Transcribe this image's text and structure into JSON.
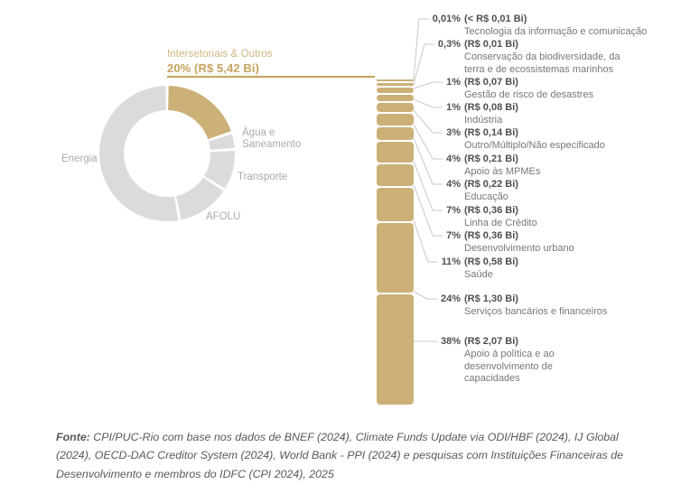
{
  "figure": {
    "callout": {
      "title": "Intersetoriais & Outros",
      "value": "20% (R$ 5,42 Bi)"
    },
    "donut": {
      "segments": [
        {
          "name": "Intersetoriais & Outros",
          "share": 20,
          "highlighted": true
        },
        {
          "name": "Água e Saneamento",
          "share": 4,
          "highlighted": false
        },
        {
          "name": "Transporte",
          "share": 10,
          "highlighted": false
        },
        {
          "name": "AFOLU",
          "share": 13,
          "highlighted": false
        },
        {
          "name": "Energia",
          "share": 53,
          "highlighted": false
        }
      ]
    },
    "breakdown": [
      {
        "pct": "0,01%",
        "value": "(< R$ 0,01 Bi)",
        "label": "Tecnologia da informação e comunicação",
        "share": 0.01
      },
      {
        "pct": "0,3%",
        "value": "(R$ 0,01 Bi)",
        "label": "Conservação da biodiversidade, da terra e de ecossistemas marinhos",
        "share": 0.3
      },
      {
        "pct": "1%",
        "value": "(R$ 0,07 Bi)",
        "label": "Gestão de risco de desastres",
        "share": 1
      },
      {
        "pct": "1%",
        "value": "(R$ 0,08 Bi)",
        "label": "Indústria",
        "share": 1
      },
      {
        "pct": "3%",
        "value": "(R$ 0,14 Bi)",
        "label": "Outro/Múltiplo/Não especificado",
        "share": 3
      },
      {
        "pct": "4%",
        "value": "(R$ 0,21 Bi)",
        "label": "Apoio às MPMEs",
        "share": 4
      },
      {
        "pct": "4%",
        "value": "(R$ 0,22 Bi)",
        "label": "Educação",
        "share": 4
      },
      {
        "pct": "7%",
        "value": "(R$ 0,36 Bi)",
        "label": "Linha de Crédito",
        "share": 7
      },
      {
        "pct": "7%",
        "value": "(R$ 0,36 Bi)",
        "label": "Desenvolvimento urbano",
        "share": 7
      },
      {
        "pct": "11%",
        "value": "(R$ 0,58 Bi)",
        "label": "Saúde",
        "share": 11
      },
      {
        "pct": "24%",
        "value": "(R$ 1,30 Bi)",
        "label": "Serviços bancários e financeiros",
        "share": 24
      },
      {
        "pct": "38%",
        "value": "(R$ 2,07 Bi)",
        "label": "Apoio à política e ao desenvolvimento de capacidades",
        "share": 38
      }
    ],
    "source": {
      "prefix": "Fonte:",
      "text": " CPI/PUC-Rio com base nos dados de BNEF (2024), Climate Funds Update via ODI/HBF (2024), IJ Global (2024), OECD-DAC Creditor System (2024), World Bank - PPI (2024) e pesquisas com Instituições Financeiras de Desenvolvimento e membros do IDFC (CPI 2024), 2025"
    },
    "colors": {
      "gold": "#CBB077",
      "gold_text": "#C5A45C",
      "gold_text_light": "#CFB67F",
      "gray_segment": "#DBDBDA",
      "text_dark": "#4E4F51",
      "text_gray": "#76777A",
      "label_gray": "#ACAAAB",
      "connector": "#C8C8C8"
    }
  },
  "chart_data": [
    {
      "type": "pie",
      "title": "",
      "slices": [
        {
          "label": "Intersetoriais & Outros",
          "value_pct": 20,
          "value": "R$ 5,42 Bi",
          "highlighted": true
        },
        {
          "label": "Água e Saneamento",
          "value_pct": 4
        },
        {
          "label": "Transporte",
          "value_pct": 10
        },
        {
          "label": "AFOLU",
          "value_pct": 13
        },
        {
          "label": "Energia",
          "value_pct": 53
        }
      ],
      "legend_position": "around",
      "note": "donut; gray slice percentages estimated from arc angles (unlabeled in figure)"
    },
    {
      "type": "bar",
      "title": "",
      "categories": [
        "Tecnologia da informação e comunicação",
        "Conservação da biodiversidade, da terra e de ecossistemas marinhos",
        "Gestão de risco de desastres",
        "Indústria",
        "Outro/Múltiplo/Não especificado",
        "Apoio às MPMEs",
        "Educação",
        "Linha de Crédito",
        "Desenvolvimento urbano",
        "Saúde",
        "Serviços bancários e financeiros",
        "Apoio à política e ao desenvolvimento de capacidades"
      ],
      "values_pct": [
        0.01,
        0.3,
        1,
        1,
        3,
        4,
        4,
        7,
        7,
        11,
        24,
        38
      ],
      "values_brl_bi": [
        0.01,
        0.01,
        0.07,
        0.08,
        0.14,
        0.21,
        0.22,
        0.36,
        0.36,
        0.58,
        1.3,
        2.07
      ],
      "value_labels": [
        "(< R$ 0,01 Bi)",
        "(R$ 0,01 Bi)",
        "(R$ 0,07 Bi)",
        "(R$ 0,08 Bi)",
        "(R$ 0,14 Bi)",
        "(R$ 0,21 Bi)",
        "(R$ 0,22 Bi)",
        "(R$ 0,36 Bi)",
        "(R$ 0,36 Bi)",
        "(R$ 0,58 Bi)",
        "(R$ 1,30 Bi)",
        "(R$ 2,07 Bi)"
      ],
      "xlabel": "",
      "ylabel": "",
      "orientation": "vertical-stacked-single-column"
    }
  ]
}
